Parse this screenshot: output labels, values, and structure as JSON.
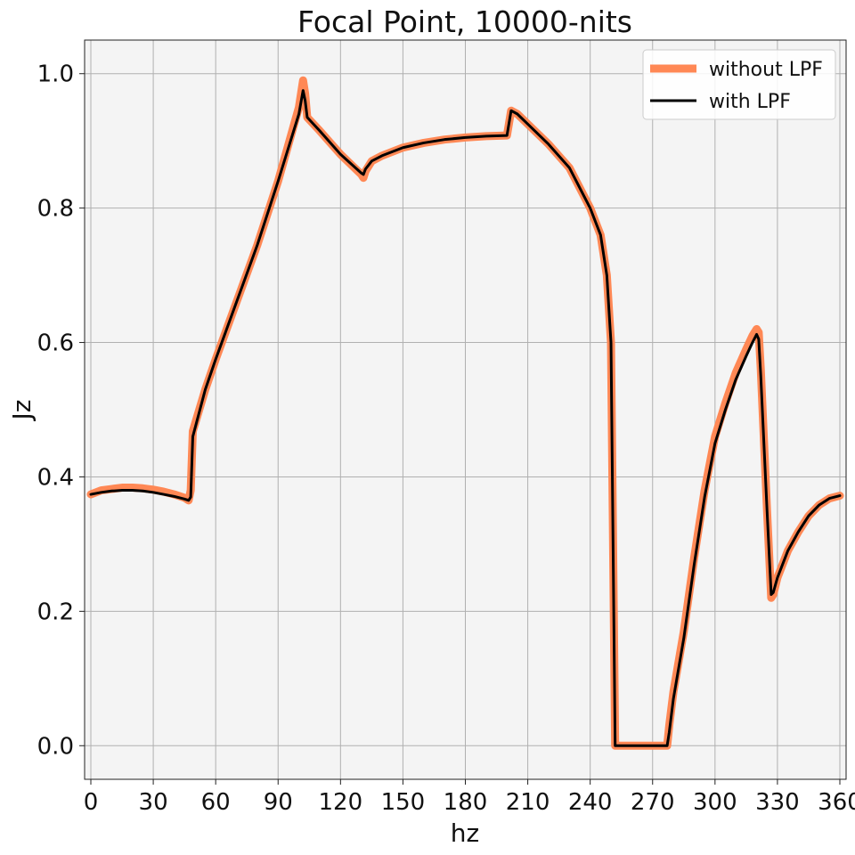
{
  "chart_data": {
    "type": "line",
    "title": "Focal Point,  10000-nits",
    "xlabel": "hz",
    "ylabel": "Jz",
    "xlim": [
      -3,
      363
    ],
    "ylim": [
      -0.05,
      1.05
    ],
    "xticks": [
      0,
      30,
      60,
      90,
      120,
      150,
      180,
      210,
      240,
      270,
      300,
      330,
      360
    ],
    "yticks": [
      0.0,
      0.2,
      0.4,
      0.6,
      0.8,
      1.0
    ],
    "ytick_labels": [
      "0.0",
      "0.2",
      "0.4",
      "0.6",
      "0.8",
      "1.0"
    ],
    "grid": true,
    "background": "#f4f4f4",
    "legend": {
      "position": "top-right"
    },
    "series": [
      {
        "name": "without LPF",
        "color": "#ff8855",
        "x": [
          0,
          5,
          10,
          15,
          20,
          25,
          30,
          35,
          40,
          45,
          47,
          48,
          49,
          55,
          60,
          70,
          80,
          90,
          95,
          100,
          102,
          103,
          104,
          110,
          120,
          130,
          131,
          132,
          135,
          140,
          150,
          160,
          170,
          180,
          190,
          200,
          202,
          205,
          210,
          220,
          230,
          240,
          245,
          248,
          250,
          251,
          252,
          253,
          260,
          270,
          277,
          278,
          280,
          285,
          290,
          295,
          300,
          305,
          310,
          315,
          318,
          320,
          321,
          322,
          325,
          327,
          328,
          330,
          335,
          340,
          345,
          350,
          355,
          360
        ],
        "y": [
          0.374,
          0.38,
          0.382,
          0.384,
          0.384,
          0.383,
          0.381,
          0.378,
          0.374,
          0.369,
          0.365,
          0.38,
          0.468,
          0.53,
          0.575,
          0.66,
          0.745,
          0.84,
          0.895,
          0.95,
          0.99,
          0.97,
          0.935,
          0.915,
          0.88,
          0.85,
          0.845,
          0.855,
          0.87,
          0.878,
          0.89,
          0.897,
          0.902,
          0.905,
          0.907,
          0.908,
          0.945,
          0.94,
          0.925,
          0.895,
          0.86,
          0.8,
          0.76,
          0.7,
          0.6,
          0.3,
          0.0,
          0.0,
          0.0,
          0.0,
          0.0,
          0.03,
          0.08,
          0.17,
          0.28,
          0.38,
          0.46,
          0.51,
          0.555,
          0.59,
          0.61,
          0.62,
          0.615,
          0.56,
          0.35,
          0.22,
          0.225,
          0.25,
          0.29,
          0.318,
          0.342,
          0.358,
          0.368,
          0.372
        ]
      },
      {
        "name": "with LPF",
        "color": "#000000",
        "x": [
          0,
          5,
          10,
          15,
          20,
          25,
          30,
          35,
          40,
          45,
          47,
          48,
          49,
          55,
          60,
          70,
          80,
          90,
          95,
          100,
          102,
          103,
          104,
          110,
          120,
          130,
          131,
          132,
          135,
          140,
          150,
          160,
          170,
          180,
          190,
          200,
          202,
          205,
          210,
          220,
          230,
          240,
          245,
          248,
          250,
          251,
          252,
          253,
          260,
          270,
          277,
          278,
          280,
          285,
          290,
          295,
          300,
          305,
          310,
          315,
          318,
          320,
          321,
          322,
          325,
          327,
          328,
          330,
          335,
          340,
          345,
          350,
          355,
          360
        ],
        "y": [
          0.374,
          0.377,
          0.379,
          0.38,
          0.38,
          0.379,
          0.377,
          0.374,
          0.371,
          0.367,
          0.365,
          0.37,
          0.46,
          0.53,
          0.575,
          0.66,
          0.745,
          0.84,
          0.89,
          0.94,
          0.975,
          0.96,
          0.935,
          0.915,
          0.88,
          0.852,
          0.85,
          0.858,
          0.87,
          0.878,
          0.89,
          0.897,
          0.902,
          0.905,
          0.907,
          0.908,
          0.945,
          0.94,
          0.925,
          0.895,
          0.86,
          0.8,
          0.76,
          0.7,
          0.6,
          0.3,
          0.0,
          0.0,
          0.0,
          0.0,
          0.0,
          0.02,
          0.07,
          0.16,
          0.27,
          0.37,
          0.45,
          0.5,
          0.545,
          0.58,
          0.6,
          0.612,
          0.605,
          0.55,
          0.35,
          0.225,
          0.228,
          0.25,
          0.29,
          0.318,
          0.342,
          0.358,
          0.368,
          0.372
        ]
      }
    ]
  }
}
